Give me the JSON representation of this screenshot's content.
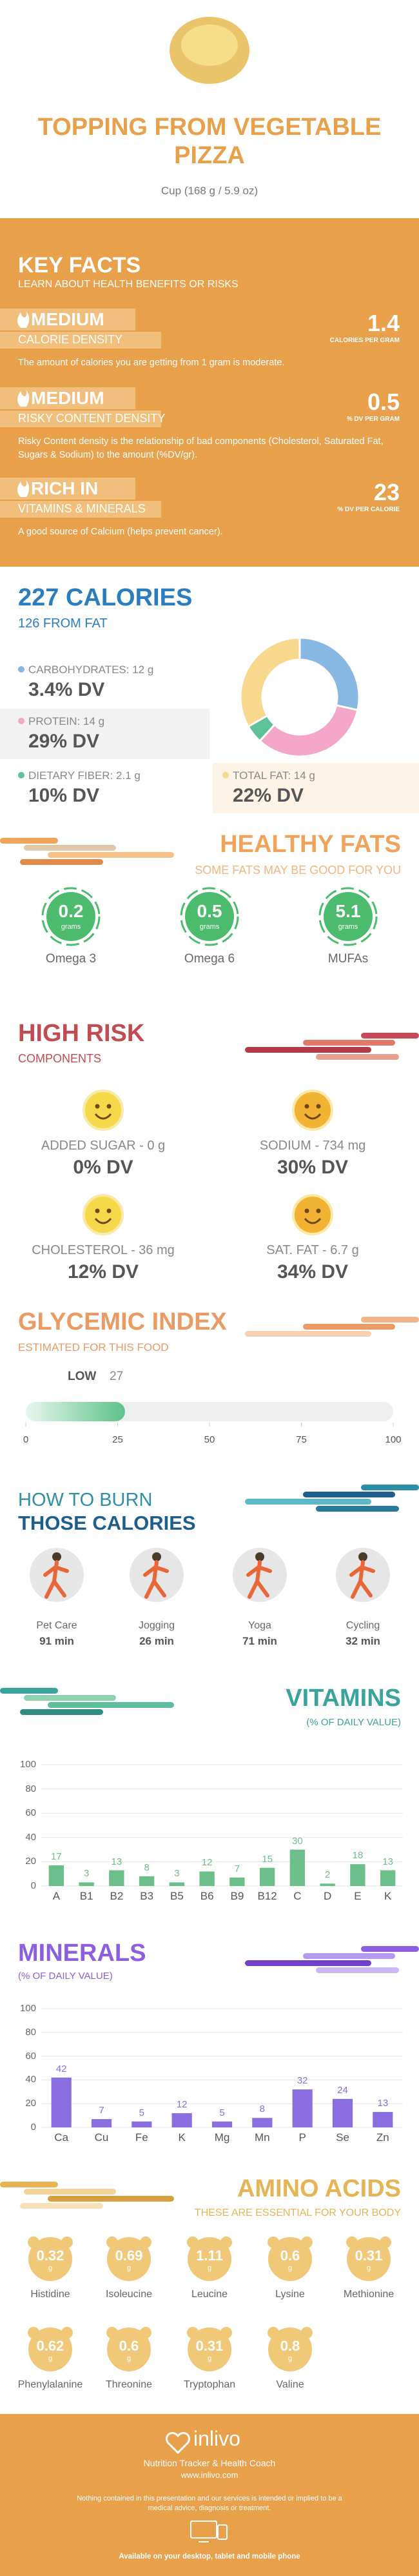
{
  "header": {
    "title": "TOPPING FROM VEGETABLE PIZZA",
    "subtitle": "Cup (168 g / 5.9 oz)"
  },
  "key_facts": {
    "title": "KEY FACTS",
    "subtitle": "LEARN ABOUT HEALTH BENEFITS OR RISKS",
    "facts": [
      {
        "level": "MEDIUM",
        "name": "CALORIE DENSITY",
        "value": 1.4,
        "unit": "CALORIES PER GRAM",
        "description": "The amount of calories you are getting from 1 gram is moderate."
      },
      {
        "level": "MEDIUM",
        "name": "RISKY CONTENT DENSITY",
        "value": 0.5,
        "unit": "% DV PER GRAM",
        "description": "Risky Content density is the relationship of bad components (Cholesterol, Saturated Fat, Sugars & Sodium) to the amount (%DV/gr)."
      },
      {
        "level": "RICH  IN",
        "name": "VITAMINS & MINERALS",
        "value": 23,
        "unit": "% DV PER CALORIE",
        "description": "A good source of Calcium (helps prevent cancer)."
      }
    ]
  },
  "calories": {
    "title": "227 CALORIES",
    "subtitle": "126 FROM FAT",
    "nutrients": [
      {
        "label": "CARBOHYDRATES: 12 g",
        "grams": 12,
        "dv": "3.4% DV",
        "color": "#86b8e3"
      },
      {
        "label": "PROTEIN: 14 g",
        "grams": 14,
        "dv": "29% DV",
        "color": "#f4a6c8"
      },
      {
        "label": "DIETARY FIBER: 2.1 g",
        "grams": 2.1,
        "dv": "10% DV",
        "color": "#5fc19a"
      },
      {
        "label": "TOTAL FAT: 14 g",
        "grams": 14,
        "dv": "22% DV",
        "color": "#f8d88c"
      }
    ]
  },
  "healthy_fats": {
    "title": "HEALTHY FATS",
    "subtitle": "SOME FATS MAY BE GOOD FOR YOU",
    "unit": "grams",
    "items": [
      {
        "value": 0.2,
        "name": "Omega 3"
      },
      {
        "value": 0.5,
        "name": "Omega 6"
      },
      {
        "value": 5.1,
        "name": "MUFAs"
      }
    ]
  },
  "high_risk": {
    "title": "HIGH RISK",
    "subtitle": "COMPONENTS",
    "items": [
      {
        "label": "ADDED SUGAR - 0 g",
        "dv": "0% DV"
      },
      {
        "label": "SODIUM - 734 mg",
        "dv": "30% DV"
      },
      {
        "label": "CHOLESTEROL - 36 mg",
        "dv": "12% DV"
      },
      {
        "label": "SAT. FAT - 6.7 g",
        "dv": "34% DV"
      }
    ]
  },
  "glycemic": {
    "title": "GLYCEMIC INDEX",
    "subtitle": "ESTIMATED FOR THIS FOOD",
    "level": "LOW",
    "value": 27,
    "xlim": [
      0,
      100
    ],
    "xticks": [
      0,
      25,
      50,
      75,
      100
    ]
  },
  "burn": {
    "title": "HOW TO BURN",
    "title2": "THOSE CALORIES",
    "activities": [
      {
        "name": "Pet Care",
        "time": "91 min"
      },
      {
        "name": "Jogging",
        "time": "26 min"
      },
      {
        "name": "Yoga",
        "time": "71 min"
      },
      {
        "name": "Cycling",
        "time": "32 min"
      }
    ]
  },
  "vitamins": {
    "type": "bar",
    "title": "VITAMINS",
    "subtitle": "(% OF DAILY VALUE)",
    "categories": [
      "A",
      "B1",
      "B2",
      "B3",
      "B5",
      "B6",
      "B9",
      "B12",
      "C",
      "D",
      "E",
      "K"
    ],
    "values": [
      17,
      3,
      13,
      8,
      3,
      12,
      7,
      15,
      30,
      2,
      18,
      13
    ],
    "color": "#6cbf8a",
    "ylim": [
      0,
      100
    ],
    "yticks": [
      0,
      20,
      40,
      60,
      80,
      100
    ],
    "grid": true
  },
  "minerals": {
    "type": "bar",
    "title": "MINERALS",
    "subtitle": "(% OF DAILY VALUE)",
    "categories": [
      "Ca",
      "Cu",
      "Fe",
      "K",
      "Mg",
      "Mn",
      "P",
      "Se",
      "Zn"
    ],
    "values": [
      42,
      7,
      5,
      12,
      5,
      8,
      32,
      24,
      13
    ],
    "color": "#8a6ee0",
    "ylim": [
      0,
      100
    ],
    "yticks": [
      0,
      20,
      40,
      60,
      80,
      100
    ],
    "grid": true
  },
  "amino_acids": {
    "title": "AMINO ACIDS",
    "subtitle": "THESE ARE ESSENTIAL FOR YOUR BODY",
    "unit": "g",
    "items": [
      {
        "value": 0.32,
        "name": "Histidine"
      },
      {
        "value": 0.69,
        "name": "Isoleucine"
      },
      {
        "value": 1.11,
        "name": "Leucine"
      },
      {
        "value": 0.6,
        "name": "Lysine"
      },
      {
        "value": 0.31,
        "name": "Methionine"
      },
      {
        "value": 0.62,
        "name": "Phenylalanine"
      },
      {
        "value": 0.6,
        "name": "Threonine"
      },
      {
        "value": 0.31,
        "name": "Tryptophan"
      },
      {
        "value": 0.8,
        "name": "Valine"
      }
    ]
  },
  "footer": {
    "brand": "inlivo",
    "tagline": "Nutrition Tracker & Health Coach",
    "url": "www.inlivo.com",
    "disclaimer": "Nothing contained in this presentation and our services is intended or implied to be a medical advice, diagnosis or treatment.",
    "availability": "Available on your desktop, tablet and mobile phone"
  }
}
